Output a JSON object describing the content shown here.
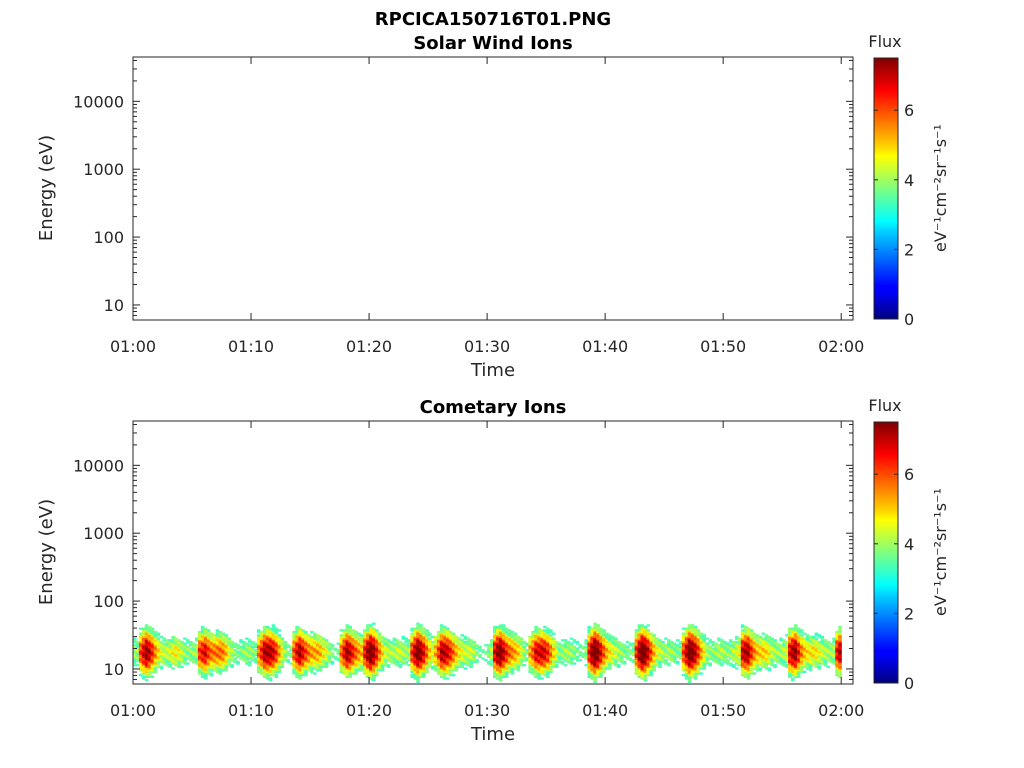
{
  "figure_title": "RPCICA150716T01.PNG",
  "chart_data": [
    {
      "type": "heatmap",
      "title": "Solar Wind Ions",
      "xlabel": "Time",
      "ylabel": "Energy (eV)",
      "y_scale": "log",
      "y_ticks": [
        10,
        100,
        1000,
        10000
      ],
      "y_tick_labels": [
        "10",
        "100",
        "1000",
        "10000"
      ],
      "ylim": [
        6,
        45000
      ],
      "x_tick_labels": [
        "01:00",
        "01:10",
        "01:20",
        "01:30",
        "01:40",
        "01:50",
        "02:00"
      ],
      "xlim": [
        "01:00",
        "02:01"
      ],
      "colorbar": {
        "title": "Flux",
        "label": "eV⁻¹cm⁻²sr⁻¹s⁻¹",
        "ticks": [
          0,
          2,
          4,
          6
        ],
        "range": [
          0,
          7.5
        ],
        "colormap": "jet"
      },
      "data": "empty"
    },
    {
      "type": "heatmap",
      "title": "Cometary Ions",
      "xlabel": "Time",
      "ylabel": "Energy (eV)",
      "y_scale": "log",
      "y_ticks": [
        10,
        100,
        1000,
        10000
      ],
      "y_tick_labels": [
        "10",
        "100",
        "1000",
        "10000"
      ],
      "ylim": [
        6,
        45000
      ],
      "x_tick_labels": [
        "01:00",
        "01:10",
        "01:20",
        "01:30",
        "01:40",
        "01:50",
        "02:00"
      ],
      "xlim": [
        "01:00",
        "02:01"
      ],
      "colorbar": {
        "title": "Flux",
        "label": "eV⁻¹cm⁻²sr⁻¹s⁻¹",
        "ticks": [
          0,
          2,
          4,
          6
        ],
        "range": [
          0,
          7.5
        ],
        "colormap": "jet"
      },
      "energy_range_eV": [
        6,
        80
      ],
      "peak_flux_energy_eV": [
        10,
        30
      ],
      "peak_flux": 7.3,
      "intensity_peaks": [
        "01:01",
        "01:06",
        "01:11",
        "01:14",
        "01:18",
        "01:20",
        "01:24",
        "01:26",
        "01:31",
        "01:34",
        "01:39",
        "01:43",
        "01:47",
        "01:52",
        "01:56",
        "02:00"
      ]
    }
  ]
}
